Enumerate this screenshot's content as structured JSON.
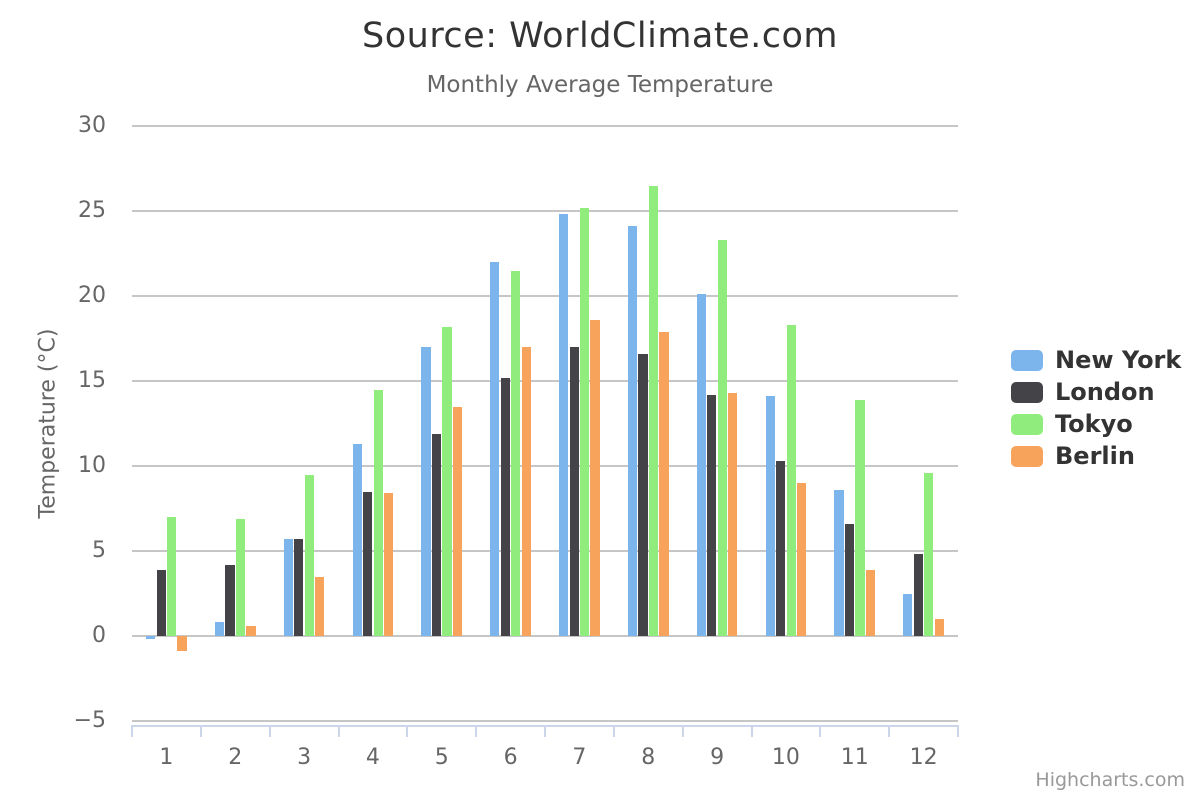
{
  "title": "Source: WorldClimate.com",
  "subtitle": "Monthly Average Temperature",
  "credits_label": "Highcharts.com",
  "colors": {
    "grid": "#c6c6c6",
    "axis_line": "#ccd6eb",
    "title_text": "#333333",
    "muted_text": "#666666",
    "credits_text": "#999999"
  },
  "chart_data": {
    "type": "bar",
    "orientation": "vertical",
    "title": "Source: WorldClimate.com",
    "subtitle": "Monthly Average Temperature",
    "xlabel": "",
    "ylabel": "Temperature (°C)",
    "categories": [
      "1",
      "2",
      "3",
      "4",
      "5",
      "6",
      "7",
      "8",
      "9",
      "10",
      "11",
      "12"
    ],
    "series": [
      {
        "name": "New York",
        "color": "#7cb5ec",
        "values": [
          -0.2,
          0.8,
          5.7,
          11.3,
          17.0,
          22.0,
          24.8,
          24.1,
          20.1,
          14.1,
          8.6,
          2.5
        ]
      },
      {
        "name": "London",
        "color": "#434348",
        "values": [
          3.9,
          4.2,
          5.7,
          8.5,
          11.9,
          15.2,
          17.0,
          16.6,
          14.2,
          10.3,
          6.6,
          4.8
        ]
      },
      {
        "name": "Tokyo",
        "color": "#90ed7d",
        "values": [
          7.0,
          6.9,
          9.5,
          14.5,
          18.2,
          21.5,
          25.2,
          26.5,
          23.3,
          18.3,
          13.9,
          9.6
        ]
      },
      {
        "name": "Berlin",
        "color": "#f7a35c",
        "values": [
          -0.9,
          0.6,
          3.5,
          8.4,
          13.5,
          17.0,
          18.6,
          17.9,
          14.3,
          9.0,
          3.9,
          1.0
        ]
      }
    ],
    "ylim": [
      -5,
      30
    ],
    "ytick_step": 5,
    "grid": true,
    "legend_position": "right",
    "legend_layout": "vertical"
  }
}
